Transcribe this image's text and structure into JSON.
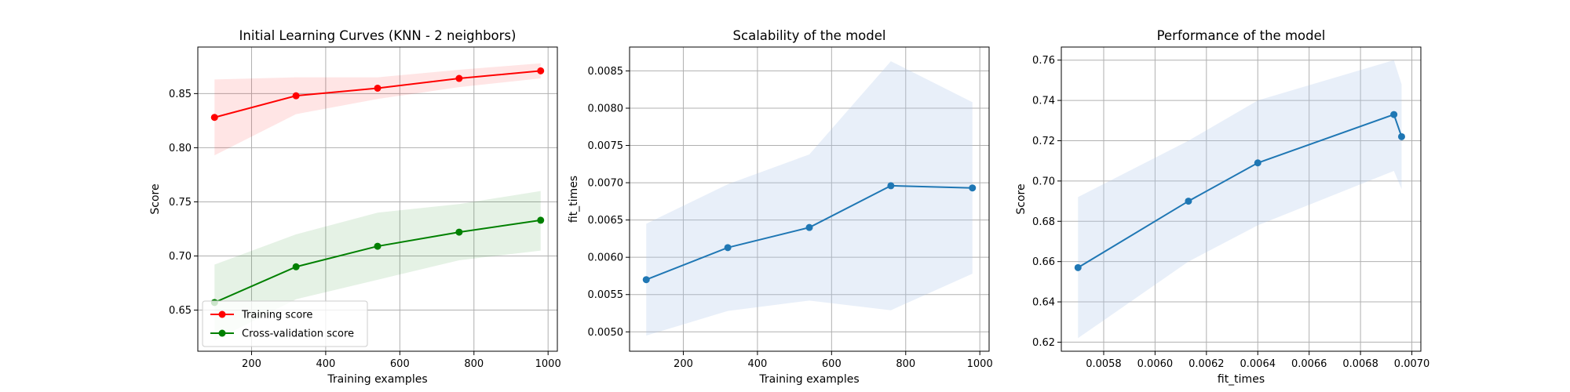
{
  "chart_data": [
    {
      "type": "line",
      "title": "Initial Learning Curves (KNN - 2 neighbors)",
      "xlabel": "Training examples",
      "ylabel": "Score",
      "xlim": [
        55,
        1025
      ],
      "ylim": [
        0.612,
        0.893
      ],
      "xticks": [
        200,
        400,
        600,
        800,
        1000
      ],
      "yticks": [
        0.65,
        0.7,
        0.75,
        0.8,
        0.85
      ],
      "ytick_labels": [
        "0.65",
        "0.70",
        "0.75",
        "0.80",
        "0.85"
      ],
      "grid": true,
      "legend": "lower-left",
      "series": [
        {
          "name": "Training score",
          "color": "#ff0000",
          "fill": "#ff0000",
          "x": [
            100,
            320,
            540,
            760,
            980
          ],
          "y": [
            0.828,
            0.848,
            0.855,
            0.864,
            0.871
          ],
          "lower": [
            0.793,
            0.831,
            0.845,
            0.856,
            0.864
          ],
          "upper": [
            0.863,
            0.865,
            0.865,
            0.872,
            0.878
          ]
        },
        {
          "name": "Cross-validation score",
          "color": "#008000",
          "fill": "#008000",
          "x": [
            100,
            320,
            540,
            760,
            980
          ],
          "y": [
            0.657,
            0.69,
            0.709,
            0.722,
            0.733
          ],
          "lower": [
            0.622,
            0.66,
            0.678,
            0.696,
            0.705
          ],
          "upper": [
            0.692,
            0.72,
            0.74,
            0.748,
            0.76
          ]
        }
      ]
    },
    {
      "type": "line",
      "title": "Scalability of the model",
      "xlabel": "Training examples",
      "ylabel": "fit_times",
      "xlim": [
        55,
        1025
      ],
      "ylim": [
        0.00474,
        0.00882
      ],
      "xticks": [
        200,
        400,
        600,
        800,
        1000
      ],
      "yticks": [
        0.005,
        0.0055,
        0.006,
        0.0065,
        0.007,
        0.0075,
        0.008,
        0.0085
      ],
      "ytick_labels": [
        "0.0050",
        "0.0055",
        "0.0060",
        "0.0065",
        "0.0070",
        "0.0075",
        "0.0080",
        "0.0085"
      ],
      "grid": true,
      "series": [
        {
          "color": "#1f77b4",
          "fill": "#aec7e8",
          "x": [
            100,
            320,
            540,
            760,
            980
          ],
          "y": [
            0.0057,
            0.00613,
            0.0064,
            0.00696,
            0.00693
          ],
          "lower": [
            0.00495,
            0.00528,
            0.00542,
            0.00529,
            0.00578
          ],
          "upper": [
            0.00645,
            0.00698,
            0.00738,
            0.00863,
            0.00808
          ]
        }
      ]
    },
    {
      "type": "line",
      "title": "Performance of the model",
      "xlabel": "fit_times",
      "ylabel": "Score",
      "xlim": [
        0.005635,
        0.007035
      ],
      "ylim": [
        0.6155,
        0.7665
      ],
      "xticks": [
        0.0058,
        0.006,
        0.0062,
        0.0064,
        0.0066,
        0.0068,
        0.007
      ],
      "xtick_labels": [
        "0.0058",
        "0.0060",
        "0.0062",
        "0.0064",
        "0.0066",
        "0.0068",
        "0.0070"
      ],
      "yticks": [
        0.62,
        0.64,
        0.66,
        0.68,
        0.7,
        0.72,
        0.74,
        0.76
      ],
      "ytick_labels": [
        "0.62",
        "0.64",
        "0.66",
        "0.68",
        "0.70",
        "0.72",
        "0.74",
        "0.76"
      ],
      "grid": true,
      "series": [
        {
          "color": "#1f77b4",
          "fill": "#aec7e8",
          "x": [
            0.0057,
            0.00613,
            0.0064,
            0.00693,
            0.00696
          ],
          "y": [
            0.657,
            0.69,
            0.709,
            0.733,
            0.722
          ],
          "lower": [
            0.622,
            0.66,
            0.678,
            0.705,
            0.696
          ],
          "upper": [
            0.692,
            0.72,
            0.74,
            0.76,
            0.748
          ]
        }
      ]
    }
  ]
}
